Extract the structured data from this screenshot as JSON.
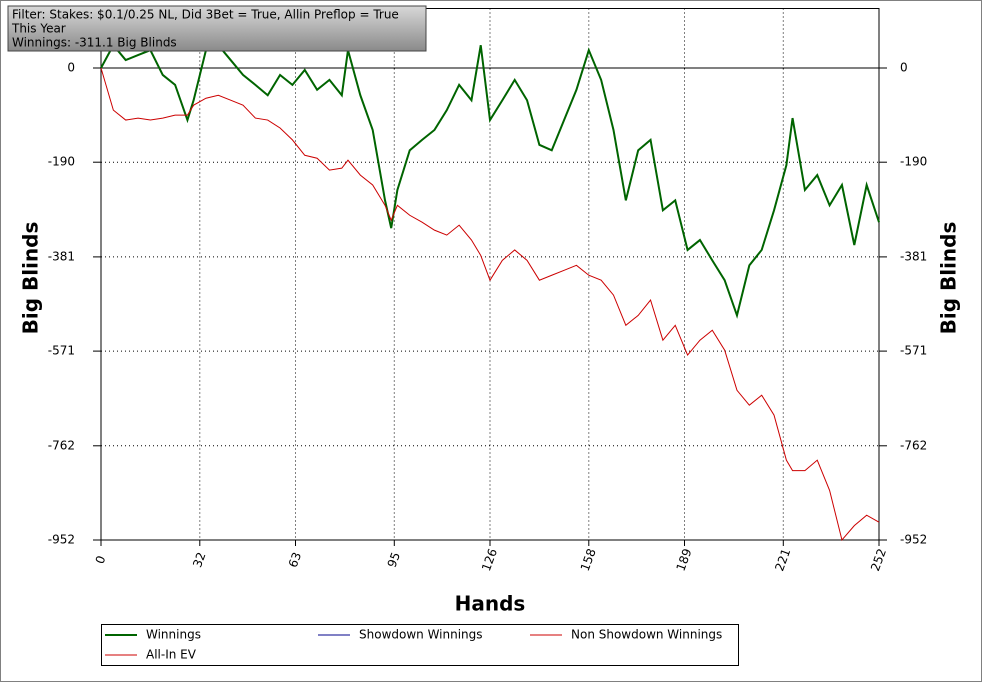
{
  "chart_data": {
    "type": "line",
    "annotations": [
      "Filter: Stakes: $0.1/0.25 NL, Did 3Bet = True, Allin Preflop = True",
      "This Year",
      "Winnings: -311.1 Big Blinds"
    ],
    "xlabel": "Hands",
    "ylabel": "Big Blinds",
    "xlim": [
      0,
      252
    ],
    "xticks": [
      0,
      32,
      63,
      95,
      126,
      158,
      189,
      221,
      252
    ],
    "ylim": [
      -952,
      120
    ],
    "yticks": [
      0,
      -190,
      -381,
      -571,
      -762,
      -952
    ],
    "grid": true,
    "x": [
      0,
      4,
      8,
      12,
      16,
      20,
      24,
      28,
      30,
      34,
      38,
      42,
      46,
      50,
      54,
      58,
      62,
      66,
      70,
      74,
      78,
      80,
      84,
      88,
      92,
      94,
      96,
      100,
      104,
      108,
      112,
      116,
      120,
      123,
      126,
      130,
      134,
      138,
      142,
      146,
      150,
      154,
      158,
      162,
      166,
      170,
      174,
      178,
      182,
      186,
      190,
      194,
      198,
      202,
      206,
      210,
      214,
      218,
      222,
      224,
      228,
      232,
      236,
      240,
      244,
      248,
      252
    ],
    "series": [
      {
        "name": "Winnings",
        "color": "#006400",
        "values": [
          0,
          46,
          16,
          26,
          36,
          -14,
          -34,
          -105,
          -65,
          36,
          46,
          16,
          -14,
          -34,
          -55,
          -14,
          -34,
          -4,
          -44,
          -24,
          -55,
          36,
          -55,
          -125,
          -267,
          -323,
          -246,
          -166,
          -145,
          -125,
          -85,
          -34,
          -65,
          46,
          -105,
          -65,
          -24,
          -65,
          -155,
          -166,
          -105,
          -44,
          36,
          -24,
          -125,
          -267,
          -166,
          -145,
          -287,
          -267,
          -367,
          -347,
          -388,
          -428,
          -499,
          -398,
          -367,
          -287,
          -196,
          -101,
          -246,
          -216,
          -277,
          -236,
          -357,
          -236,
          -311
        ]
      },
      {
        "name": "Showdown Winnings",
        "color": "#00008b",
        "values": [
          null,
          null,
          null,
          null,
          null,
          null,
          null,
          null,
          null,
          null,
          null,
          null,
          null,
          null,
          null,
          null,
          null,
          null,
          null,
          null,
          null,
          null,
          null,
          null,
          null,
          null,
          null,
          null,
          null,
          null,
          null,
          null,
          null,
          null,
          null,
          null,
          null,
          null,
          null,
          null,
          null,
          null,
          null,
          null,
          null,
          null,
          null,
          null,
          null,
          null,
          null,
          null,
          null,
          null,
          null,
          null,
          null,
          null,
          null,
          null,
          null,
          null,
          null,
          null,
          null,
          null,
          null
        ]
      },
      {
        "name": "Non Showdown Winnings",
        "color": "#cc0000",
        "values": [
          0,
          -85,
          -105,
          -101,
          -105,
          -101,
          -95,
          -95,
          -75,
          -61,
          -55,
          -65,
          -75,
          -101,
          -105,
          -121,
          -145,
          -176,
          -182,
          -206,
          -202,
          -186,
          -216,
          -236,
          -277,
          -307,
          -277,
          -297,
          -311,
          -327,
          -337,
          -317,
          -347,
          -378,
          -428,
          -388,
          -367,
          -388,
          -428,
          -418,
          -408,
          -398,
          -418,
          -428,
          -458,
          -519,
          -499,
          -468,
          -549,
          -519,
          -579,
          -549,
          -529,
          -569,
          -650,
          -680,
          -660,
          -700,
          -791,
          -812,
          -812,
          -791,
          -852,
          -952,
          -923,
          -902,
          -916
        ]
      },
      {
        "name": "All-In EV",
        "color": "#cc0000",
        "values": [
          null,
          null,
          null,
          null,
          null,
          null,
          null,
          null,
          null,
          null,
          null,
          null,
          null,
          null,
          null,
          null,
          null,
          null,
          null,
          null,
          null,
          null,
          null,
          null,
          null,
          null,
          null,
          null,
          null,
          null,
          null,
          null,
          null,
          null,
          null,
          null,
          null,
          null,
          null,
          null,
          null,
          null,
          null,
          null,
          null,
          null,
          null,
          null,
          null,
          null,
          null,
          null,
          null,
          null,
          null,
          null,
          null,
          null,
          null,
          null,
          null,
          null,
          null,
          null,
          null,
          null,
          null
        ]
      }
    ]
  }
}
